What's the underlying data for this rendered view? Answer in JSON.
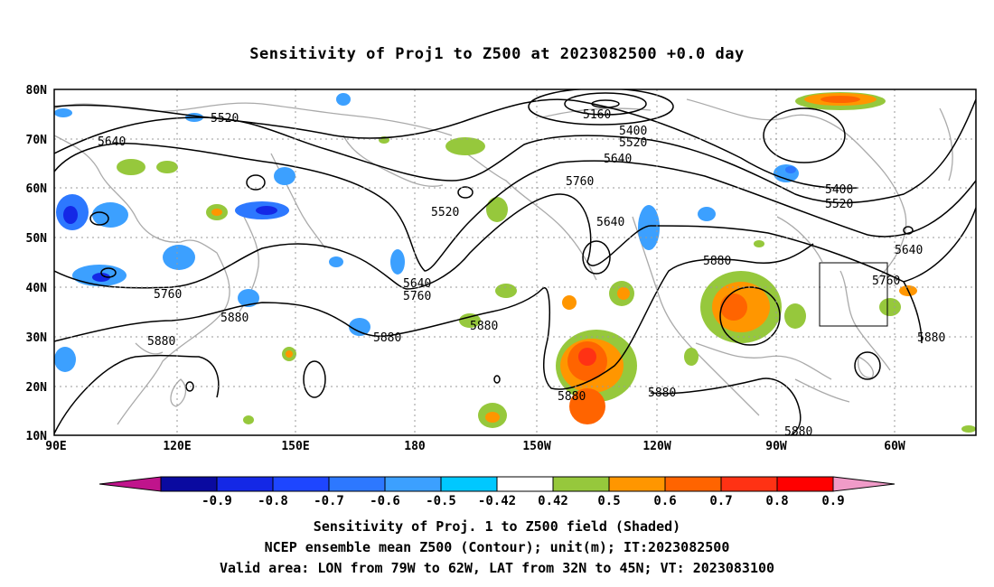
{
  "title": "Sensitivity of Proj1 to Z500 at 2023082500 +0.0 day",
  "map": {
    "lat_ticks": [
      "80N",
      "70N",
      "60N",
      "50N",
      "40N",
      "30N",
      "20N",
      "10N"
    ],
    "lon_ticks": [
      "90E",
      "120E",
      "150E",
      "180",
      "150W",
      "120W",
      "90W",
      "60W"
    ],
    "contour_labels": [
      "5160",
      "5400",
      "5520",
      "5640",
      "5760",
      "5400",
      "5520",
      "5640",
      "5760",
      "5880",
      "5520",
      "5640",
      "5760",
      "5880",
      "5880",
      "5880",
      "5880",
      "5880",
      "5760",
      "5640",
      "5520",
      "5640",
      "5760",
      "5880",
      "5880",
      "5880"
    ],
    "valid_box": {
      "lon_range": "79W to 62W",
      "lat_range": "32N to 45N"
    },
    "colors": {
      "land_outline": "#aaaaaa",
      "contour": "#000000",
      "grid": "#9a9a9a"
    }
  },
  "colorbar": {
    "labels": [
      "-0.9",
      "-0.8",
      "-0.7",
      "-0.6",
      "-0.5",
      "-0.42",
      "0.42",
      "0.5",
      "0.6",
      "0.7",
      "0.8",
      "0.9"
    ],
    "colors": [
      "#c0148c",
      "#0a0aa0",
      "#1428e6",
      "#1e46ff",
      "#2d78ff",
      "#3ca0ff",
      "#00c8ff",
      "#ffffff",
      "#96c83c",
      "#ff9600",
      "#ff6400",
      "#ff3214",
      "#ff0000",
      "#f09bc8"
    ]
  },
  "captions": [
    "Sensitivity of Proj. 1 to Z500 field (Shaded)",
    "NCEP ensemble mean Z500 (Contour); unit(m); IT:2023082500",
    "Valid area: LON from 79W to 62W, LAT from 32N to 45N; VT: 2023083100"
  ]
}
